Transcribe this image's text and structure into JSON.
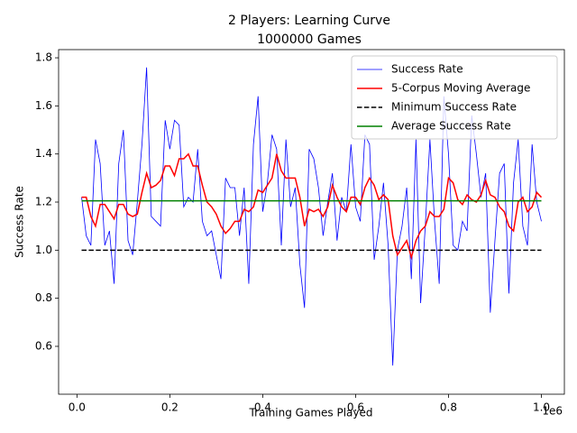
{
  "chart_data": {
    "type": "line",
    "title": "2 Players: Learning Curve",
    "subtitle": "1000000 Games",
    "xlabel": "Training Games Played",
    "ylabel": "Success Rate",
    "x_offset_label": "1e6",
    "x": [
      10000,
      20000,
      30000,
      40000,
      50000,
      60000,
      70000,
      80000,
      90000,
      100000,
      110000,
      120000,
      130000,
      140000,
      150000,
      160000,
      170000,
      180000,
      190000,
      200000,
      210000,
      220000,
      230000,
      240000,
      250000,
      260000,
      270000,
      280000,
      290000,
      300000,
      310000,
      320000,
      330000,
      340000,
      350000,
      360000,
      370000,
      380000,
      390000,
      400000,
      410000,
      420000,
      430000,
      440000,
      450000,
      460000,
      470000,
      480000,
      490000,
      500000,
      510000,
      520000,
      530000,
      540000,
      550000,
      560000,
      570000,
      580000,
      590000,
      600000,
      610000,
      620000,
      630000,
      640000,
      650000,
      660000,
      670000,
      680000,
      690000,
      700000,
      710000,
      720000,
      730000,
      740000,
      750000,
      760000,
      770000,
      780000,
      790000,
      800000,
      810000,
      820000,
      830000,
      840000,
      850000,
      860000,
      870000,
      880000,
      890000,
      900000,
      910000,
      920000,
      930000,
      940000,
      950000,
      960000,
      970000,
      980000,
      990000,
      1000000
    ],
    "series": [
      {
        "name": "Success Rate",
        "color": "#0000ff",
        "linewidth": 0.8,
        "linestyle": "-",
        "values": [
          1.22,
          1.06,
          1.02,
          1.46,
          1.36,
          1.02,
          1.08,
          0.86,
          1.36,
          1.5,
          1.04,
          0.98,
          1.2,
          1.44,
          1.76,
          1.14,
          1.12,
          1.1,
          1.54,
          1.42,
          1.54,
          1.52,
          1.18,
          1.22,
          1.2,
          1.42,
          1.12,
          1.06,
          1.08,
          0.98,
          0.88,
          1.3,
          1.26,
          1.26,
          1.06,
          1.26,
          0.86,
          1.44,
          1.64,
          1.16,
          1.28,
          1.48,
          1.42,
          1.02,
          1.46,
          1.18,
          1.26,
          0.94,
          0.76,
          1.42,
          1.38,
          1.26,
          1.06,
          1.2,
          1.32,
          1.04,
          1.22,
          1.16,
          1.44,
          1.18,
          1.12,
          1.48,
          1.44,
          0.96,
          1.1,
          1.28,
          1.02,
          0.52,
          1.0,
          1.1,
          1.26,
          0.88,
          1.46,
          0.78,
          1.1,
          1.46,
          1.12,
          0.86,
          1.64,
          1.4,
          1.02,
          1.0,
          1.12,
          1.08,
          1.56,
          1.4,
          1.22,
          1.32,
          0.74,
          1.04,
          1.32,
          1.36,
          0.82,
          1.28,
          1.46,
          1.1,
          1.02,
          1.44,
          1.2,
          1.12
        ]
      },
      {
        "name": "5-Corpus Moving Average",
        "color": "#ff0000",
        "linewidth": 1.5,
        "linestyle": "-",
        "values": [
          1.22,
          1.22,
          1.14,
          1.1,
          1.19,
          1.19,
          1.16,
          1.13,
          1.19,
          1.19,
          1.15,
          1.14,
          1.15,
          1.24,
          1.32,
          1.26,
          1.27,
          1.29,
          1.35,
          1.35,
          1.31,
          1.38,
          1.38,
          1.4,
          1.35,
          1.35,
          1.27,
          1.2,
          1.18,
          1.15,
          1.1,
          1.07,
          1.09,
          1.12,
          1.12,
          1.17,
          1.16,
          1.18,
          1.25,
          1.24,
          1.27,
          1.3,
          1.4,
          1.33,
          1.3,
          1.3,
          1.3,
          1.22,
          1.1,
          1.17,
          1.16,
          1.17,
          1.14,
          1.18,
          1.27,
          1.22,
          1.18,
          1.16,
          1.22,
          1.22,
          1.19,
          1.26,
          1.3,
          1.27,
          1.21,
          1.23,
          1.21,
          1.06,
          0.98,
          1.01,
          1.04,
          0.97,
          1.04,
          1.08,
          1.1,
          1.16,
          1.14,
          1.14,
          1.17,
          1.3,
          1.28,
          1.21,
          1.19,
          1.23,
          1.21,
          1.2,
          1.23,
          1.29,
          1.23,
          1.22,
          1.18,
          1.16,
          1.1,
          1.08,
          1.2,
          1.22,
          1.16,
          1.18,
          1.24,
          1.22
        ]
      },
      {
        "name": "Minimum Success Rate",
        "color": "#000000",
        "linewidth": 1.5,
        "linestyle": "--",
        "values": [
          1,
          1,
          1,
          1,
          1,
          1,
          1,
          1,
          1,
          1,
          1,
          1,
          1,
          1,
          1,
          1,
          1,
          1,
          1,
          1,
          1,
          1,
          1,
          1,
          1,
          1,
          1,
          1,
          1,
          1,
          1,
          1,
          1,
          1,
          1,
          1,
          1,
          1,
          1,
          1,
          1,
          1,
          1,
          1,
          1,
          1,
          1,
          1,
          1,
          1,
          1,
          1,
          1,
          1,
          1,
          1,
          1,
          1,
          1,
          1,
          1,
          1,
          1,
          1,
          1,
          1,
          1,
          1,
          1,
          1,
          1,
          1,
          1,
          1,
          1,
          1,
          1,
          1,
          1,
          1,
          1,
          1,
          1,
          1,
          1,
          1,
          1,
          1,
          1,
          1,
          1,
          1,
          1,
          1,
          1,
          1,
          1,
          1,
          1,
          1
        ]
      },
      {
        "name": "Average Success Rate",
        "color": "#008000",
        "linewidth": 1.5,
        "linestyle": "-",
        "values": [
          1.205,
          1.205,
          1.205,
          1.205,
          1.205,
          1.205,
          1.205,
          1.205,
          1.205,
          1.205,
          1.205,
          1.205,
          1.205,
          1.205,
          1.205,
          1.205,
          1.205,
          1.205,
          1.205,
          1.205,
          1.205,
          1.205,
          1.205,
          1.205,
          1.205,
          1.205,
          1.205,
          1.205,
          1.205,
          1.205,
          1.205,
          1.205,
          1.205,
          1.205,
          1.205,
          1.205,
          1.205,
          1.205,
          1.205,
          1.205,
          1.205,
          1.205,
          1.205,
          1.205,
          1.205,
          1.205,
          1.205,
          1.205,
          1.205,
          1.205,
          1.205,
          1.205,
          1.205,
          1.205,
          1.205,
          1.205,
          1.205,
          1.205,
          1.205,
          1.205,
          1.205,
          1.205,
          1.205,
          1.205,
          1.205,
          1.205,
          1.205,
          1.205,
          1.205,
          1.205,
          1.205,
          1.205,
          1.205,
          1.205,
          1.205,
          1.205,
          1.205,
          1.205,
          1.205,
          1.205,
          1.205,
          1.205,
          1.205,
          1.205,
          1.205,
          1.205,
          1.205,
          1.205,
          1.205,
          1.205,
          1.205,
          1.205,
          1.205,
          1.205,
          1.205,
          1.205,
          1.205,
          1.205,
          1.205,
          1.205
        ]
      }
    ],
    "xlim": [
      -39500,
      1049500
    ],
    "xticks": [
      {
        "value": 0,
        "label": "0.0"
      },
      {
        "value": 200000,
        "label": "0.2"
      },
      {
        "value": 400000,
        "label": "0.4"
      },
      {
        "value": 600000,
        "label": "0.6"
      },
      {
        "value": 800000,
        "label": "0.8"
      },
      {
        "value": 1000000,
        "label": "1.0"
      }
    ],
    "ylim": [
      0.401,
      1.834
    ],
    "yticks": [
      0.6,
      0.8,
      {
        "value": 1,
        "label": "1.0"
      },
      1.2,
      1.4,
      1.6,
      1.8
    ],
    "grid": false,
    "legend": "upper right"
  }
}
